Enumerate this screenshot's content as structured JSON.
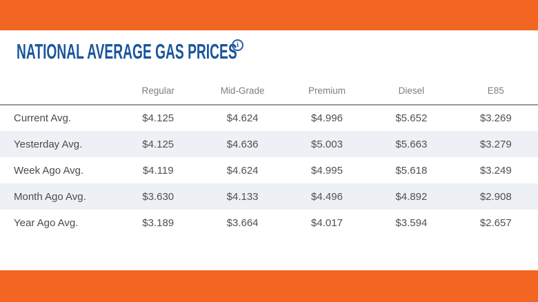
{
  "header": {
    "title": "NATIONAL AVERAGE GAS PRICES",
    "info_icon_glyph": "i"
  },
  "colors": {
    "brand_orange": "#F26522",
    "title_blue": "#1A569B",
    "info_icon_blue": "#2A5CA8",
    "row_stripe": "#EDF1F5",
    "header_text_gray": "#7D7D7D",
    "cell_text_gray": "#4F4F4F",
    "divider_gray": "#999999"
  },
  "chart_data": {
    "type": "table",
    "title": "National Average Gas Prices",
    "columns": [
      "Regular",
      "Mid-Grade",
      "Premium",
      "Diesel",
      "E85"
    ],
    "rows": [
      {
        "label": "Current Avg.",
        "values": [
          "$4.125",
          "$4.624",
          "$4.996",
          "$5.652",
          "$3.269"
        ]
      },
      {
        "label": "Yesterday Avg.",
        "values": [
          "$4.125",
          "$4.636",
          "$5.003",
          "$5.663",
          "$3.279"
        ]
      },
      {
        "label": "Week Ago Avg.",
        "values": [
          "$4.119",
          "$4.624",
          "$4.995",
          "$5.618",
          "$3.249"
        ]
      },
      {
        "label": "Month Ago Avg.",
        "values": [
          "$3.630",
          "$4.133",
          "$4.496",
          "$4.892",
          "$2.908"
        ]
      },
      {
        "label": "Year Ago Avg.",
        "values": [
          "$3.189",
          "$3.664",
          "$4.017",
          "$3.594",
          "$2.657"
        ]
      }
    ]
  }
}
